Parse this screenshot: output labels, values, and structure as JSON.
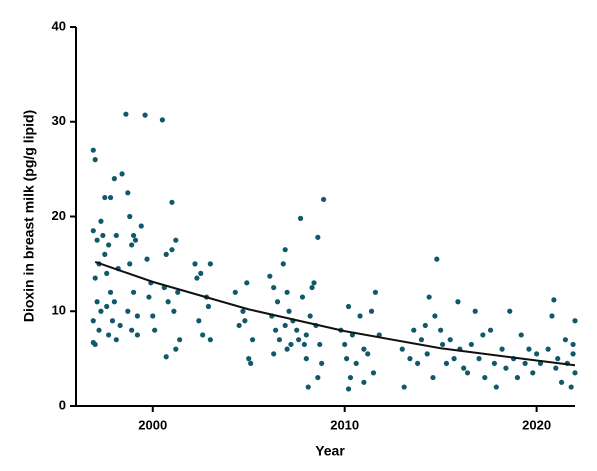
{
  "chart_data": {
    "type": "scatter",
    "x_label": "Year",
    "y_label": "Dioxin in breast milk (pg/g lipid)",
    "xlim": [
      1996,
      2022
    ],
    "xticks": [
      2000,
      2010,
      2020
    ],
    "ylim": [
      0,
      40
    ],
    "yticks": [
      0,
      10,
      20,
      30,
      40
    ],
    "series": [
      {
        "color": "#11586b",
        "x": [
          1996.9,
          1997.0,
          1996.9,
          1997.1,
          1997.2,
          1997.0,
          1997.1,
          1997.3,
          1996.9,
          1997.2,
          1996.9,
          1997.0,
          1997.4,
          1997.5,
          1997.3,
          1997.5,
          1997.8,
          1997.7,
          1997.6,
          1997.8,
          1997.6,
          1997.9,
          1997.7,
          1998.0,
          1998.1,
          1998.2,
          1998.0,
          1998.3,
          1998.1,
          1998.4,
          1998.6,
          1998.7,
          1998.8,
          1998.9,
          1999.0,
          1999.1,
          1998.8,
          1999.0,
          1998.7,
          1999.2,
          1998.9,
          1999.2,
          1999.4,
          1999.6,
          1999.7,
          1999.9,
          1999.8,
          2000.0,
          2000.1,
          2000.5,
          2000.7,
          2000.6,
          2000.8,
          2000.7,
          2001.0,
          2001.2,
          2001.0,
          2001.3,
          2001.1,
          2001.2,
          2001.4,
          2002.2,
          2002.5,
          2002.8,
          2002.4,
          2002.6,
          2003.0,
          2002.9,
          2002.3,
          2003.0,
          2004.3,
          2004.5,
          2004.7,
          2004.9,
          2005.0,
          2005.1,
          2004.8,
          2005.2,
          2006.1,
          2006.3,
          2006.5,
          2006.2,
          2006.4,
          2006.6,
          2006.3,
          2006.8,
          2006.9,
          2007.0,
          2007.1,
          2006.9,
          2007.2,
          2007.0,
          2007.3,
          2007.5,
          2007.7,
          2007.8,
          2007.6,
          2007.9,
          2008.0,
          2008.1,
          2008.3,
          2008.4,
          2008.5,
          2008.6,
          2008.7,
          2008.8,
          2008.9,
          2008.6,
          2008.2,
          2008.0,
          2009.8,
          2010.0,
          2010.2,
          2010.1,
          2010.3,
          2010.2,
          2010.4,
          2010.6,
          2010.8,
          2011.0,
          2011.2,
          2011.4,
          2011.6,
          2011.8,
          2011.5,
          2011.0,
          2013.0,
          2013.1,
          2013.4,
          2013.6,
          2013.8,
          2014.0,
          2014.2,
          2014.4,
          2014.3,
          2014.6,
          2014.8,
          2014.7,
          2015.0,
          2015.1,
          2015.3,
          2015.5,
          2015.7,
          2015.9,
          2016.0,
          2016.2,
          2016.4,
          2016.6,
          2016.8,
          2017.0,
          2017.2,
          2017.3,
          2017.6,
          2017.8,
          2017.9,
          2018.2,
          2018.4,
          2018.6,
          2018.8,
          2019.0,
          2019.2,
          2019.4,
          2019.6,
          2019.8,
          2020.0,
          2020.2,
          2020.6,
          2020.8,
          2020.9,
          2021.0,
          2021.1,
          2021.3,
          2021.5,
          2021.6,
          2021.8,
          2022.0,
          2021.9,
          2022.0,
          2021.9
        ],
        "values": [
          27,
          26,
          18.5,
          17.5,
          15,
          13.5,
          11,
          10,
          9,
          8,
          6.7,
          6.5,
          18,
          22,
          19.5,
          16,
          22,
          17,
          14,
          12,
          10.5,
          9,
          7.5,
          24,
          18,
          14.5,
          11,
          8.5,
          7,
          24.5,
          30.8,
          22.5,
          20,
          17,
          18,
          17.5,
          15,
          12,
          10,
          9.5,
          8,
          7.5,
          19,
          30.7,
          15.5,
          13,
          11.5,
          9.5,
          8,
          30.2,
          16,
          12.5,
          11,
          5.2,
          21.5,
          17.5,
          16.5,
          12,
          10,
          6,
          7,
          15,
          14,
          11.5,
          9,
          7.5,
          7,
          10.5,
          13.5,
          15,
          12,
          8.5,
          10,
          13,
          5,
          4.5,
          9,
          7,
          13.7,
          12.5,
          11,
          9.5,
          8,
          7,
          5.5,
          15,
          16.5,
          12,
          10,
          8.5,
          6.5,
          6,
          9,
          8,
          19.8,
          11.5,
          7,
          6.5,
          5,
          2,
          12.5,
          13,
          8.5,
          17.8,
          6.5,
          4.5,
          21.8,
          3,
          9.5,
          7.5,
          8,
          6.5,
          10.5,
          5,
          3,
          1.8,
          7.5,
          4.5,
          9.5,
          6,
          5.5,
          10,
          12,
          7.5,
          3.5,
          2.5,
          6,
          2,
          5,
          8,
          4.5,
          7,
          8.5,
          11.5,
          5.5,
          3,
          15.5,
          9.5,
          8,
          6.5,
          4.5,
          7,
          5,
          11,
          6,
          4,
          3.5,
          6.5,
          10,
          5,
          7.5,
          3,
          8,
          4.5,
          2,
          6,
          4,
          10,
          5,
          3,
          7.5,
          4.5,
          6,
          3.5,
          5.5,
          4.5,
          6,
          9.5,
          11.2,
          4,
          5,
          2.5,
          7,
          4.5,
          2,
          9,
          5.5,
          3.5,
          6.5
        ]
      },
      {
        "type": "line",
        "color": "#111111",
        "x": [
          1997,
          2000,
          2005,
          2010,
          2015,
          2020,
          2022
        ],
        "values": [
          15.2,
          13.1,
          10.2,
          7.9,
          6.1,
          4.8,
          4.3
        ]
      }
    ]
  }
}
